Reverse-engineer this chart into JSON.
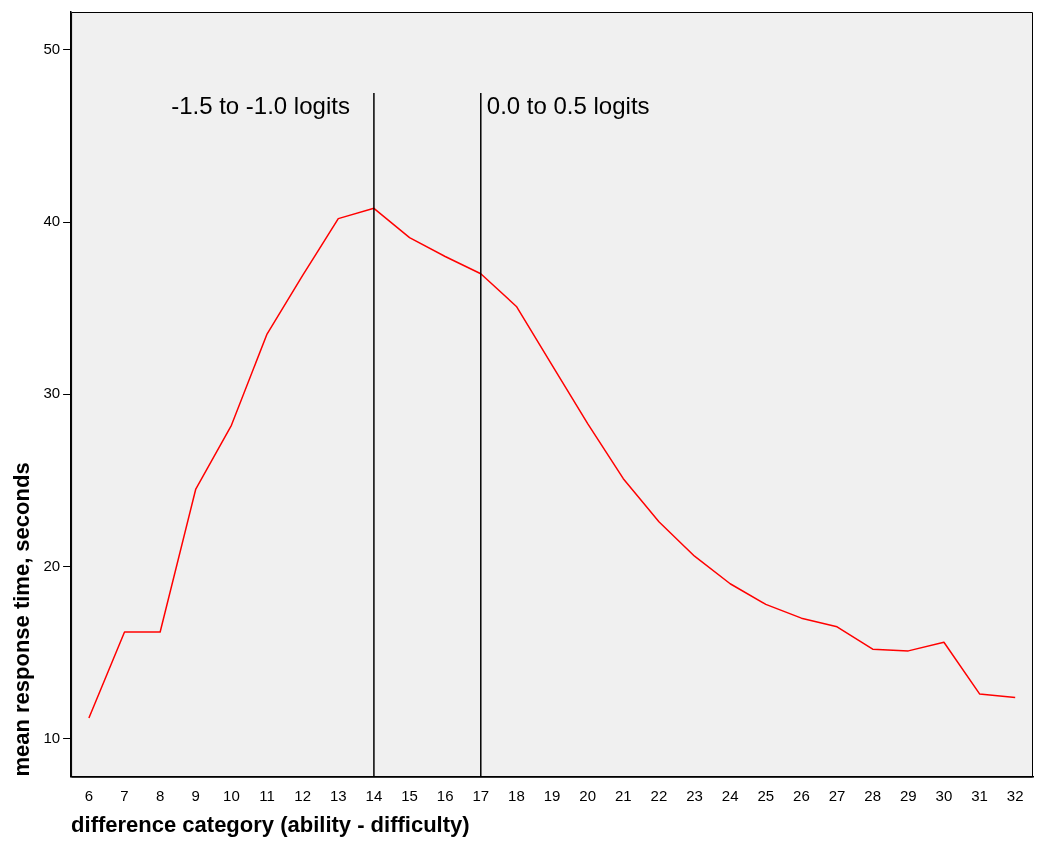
{
  "chart_data": {
    "type": "line",
    "xlabel": "difference category (ability - difficulty)",
    "ylabel": "mean response time, seconds",
    "categories": [
      "6",
      "7",
      "8",
      "9",
      "10",
      "11",
      "12",
      "13",
      "14",
      "15",
      "16",
      "17",
      "18",
      "19",
      "20",
      "21",
      "22",
      "23",
      "24",
      "25",
      "26",
      "27",
      "28",
      "29",
      "30",
      "31",
      "32"
    ],
    "series": [
      {
        "color": "#ff0000",
        "values": [
          11.2,
          16.2,
          16.2,
          24.5,
          28.2,
          33.5,
          36.9,
          40.2,
          40.8,
          39.1,
          38.0,
          37.0,
          35.1,
          31.7,
          28.3,
          25.1,
          22.6,
          20.6,
          19.0,
          17.8,
          17.0,
          16.5,
          15.2,
          15.1,
          15.6,
          12.6,
          12.4
        ]
      }
    ],
    "ylim": [
      7.8,
      52.2
    ],
    "yticks": [
      10,
      20,
      30,
      40,
      50
    ],
    "grid": false,
    "legend": false,
    "marker": "none",
    "line_style": "solid",
    "ref_lines": [
      {
        "axis": "x",
        "value": "14",
        "label": "-1.5 to -1.0 logits",
        "color": "#000000"
      },
      {
        "axis": "x",
        "value": "17",
        "label": "0.0 to 0.5 logits",
        "color": "#000000"
      }
    ]
  }
}
